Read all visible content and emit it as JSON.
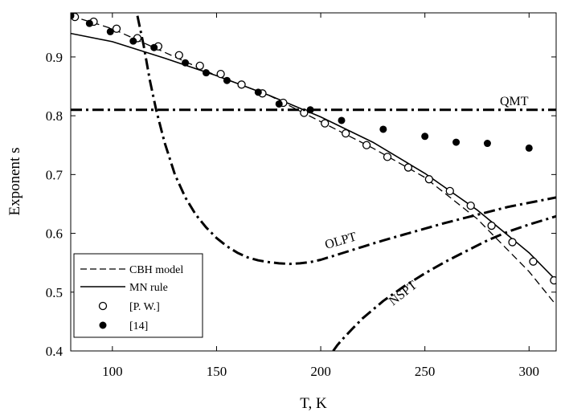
{
  "chart_data": {
    "type": "line",
    "xlabel": "T, K",
    "ylabel": "Exponent s",
    "xlim": [
      80,
      313
    ],
    "ylim": [
      0.4,
      0.975
    ],
    "x_ticks": [
      "100",
      "150",
      "200",
      "250",
      "300"
    ],
    "y_ticks": [
      "0.4",
      "0.5",
      "0.6",
      "0.7",
      "0.8",
      "0.9"
    ],
    "legend": {
      "placement": "bottom-left",
      "entries": [
        {
          "label": "CBH model",
          "style": "dashed"
        },
        {
          "label": "MN rule",
          "style": "solid"
        },
        {
          "label": "[P. W.]",
          "style": "open-circle"
        },
        {
          "label": "[14]",
          "style": "filled-circle"
        }
      ]
    },
    "annotations": [
      "QMT",
      "OLPT",
      "NSPT"
    ],
    "series": [
      {
        "name": "CBH model",
        "style": "dashed",
        "x": [
          80,
          100,
          125,
          150,
          175,
          200,
          225,
          250,
          275,
          300,
          313
        ],
        "y": [
          0.97,
          0.948,
          0.908,
          0.868,
          0.835,
          0.79,
          0.745,
          0.695,
          0.625,
          0.535,
          0.478
        ]
      },
      {
        "name": "MN rule",
        "style": "solid",
        "x": [
          80,
          100,
          125,
          150,
          175,
          200,
          225,
          250,
          275,
          300,
          313
        ],
        "y": [
          0.94,
          0.926,
          0.898,
          0.868,
          0.835,
          0.798,
          0.755,
          0.702,
          0.64,
          0.567,
          0.52
        ]
      },
      {
        "name": "[P. W.]",
        "style": "open-circle",
        "x": [
          82,
          91,
          102,
          112,
          122,
          132,
          142,
          152,
          162,
          172,
          182,
          192,
          202,
          212,
          222,
          232,
          242,
          252,
          262,
          272,
          282,
          292,
          302,
          312
        ],
        "y": [
          0.968,
          0.96,
          0.948,
          0.932,
          0.918,
          0.903,
          0.885,
          0.871,
          0.853,
          0.838,
          0.822,
          0.805,
          0.787,
          0.77,
          0.75,
          0.73,
          0.712,
          0.692,
          0.672,
          0.647,
          0.613,
          0.585,
          0.552,
          0.52
        ]
      },
      {
        "name": "[14]",
        "style": "filled-circle",
        "x": [
          80,
          89,
          99,
          110,
          120,
          135,
          145,
          155,
          170,
          180,
          195,
          210,
          230,
          250,
          265,
          280,
          300
        ],
        "y": [
          0.97,
          0.957,
          0.943,
          0.927,
          0.916,
          0.89,
          0.873,
          0.86,
          0.84,
          0.82,
          0.81,
          0.792,
          0.777,
          0.765,
          0.755,
          0.753,
          0.745
        ]
      },
      {
        "name": "QMT",
        "style": "dash-dot",
        "x": [
          80,
          313
        ],
        "y": [
          0.81,
          0.81
        ]
      },
      {
        "name": "OLPT",
        "style": "dash-dot",
        "x": [
          112,
          115,
          118,
          121,
          125,
          130,
          135,
          140,
          145,
          150,
          155,
          160,
          165,
          170,
          175,
          180,
          185,
          190,
          195,
          200,
          210,
          220,
          230,
          240,
          250,
          260,
          270,
          280,
          290,
          300,
          313
        ],
        "y": [
          0.97,
          0.92,
          0.86,
          0.81,
          0.755,
          0.7,
          0.661,
          0.632,
          0.61,
          0.592,
          0.578,
          0.567,
          0.559,
          0.554,
          0.551,
          0.549,
          0.548,
          0.549,
          0.551,
          0.555,
          0.566,
          0.577,
          0.588,
          0.598,
          0.608,
          0.618,
          0.627,
          0.636,
          0.645,
          0.652,
          0.661
        ]
      },
      {
        "name": "NSPT",
        "style": "dash-dot",
        "x": [
          206,
          208,
          211,
          215,
          220,
          225,
          230,
          240,
          250,
          260,
          270,
          280,
          290,
          300,
          313
        ],
        "y": [
          0.4,
          0.41,
          0.422,
          0.437,
          0.455,
          0.47,
          0.485,
          0.51,
          0.532,
          0.552,
          0.57,
          0.588,
          0.603,
          0.615,
          0.629
        ]
      }
    ]
  }
}
